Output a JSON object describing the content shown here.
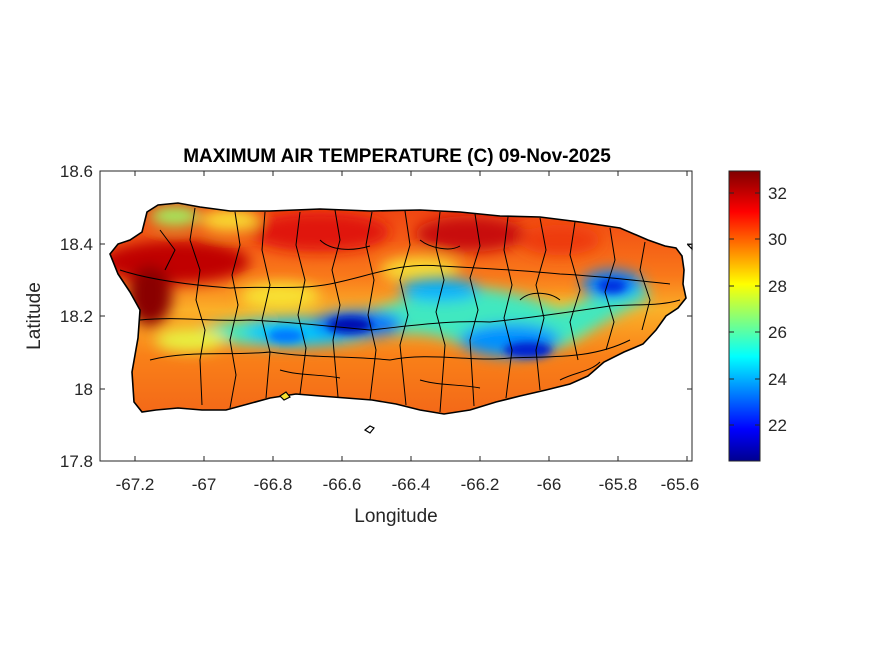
{
  "title": "MAXIMUM AIR TEMPERATURE (C) 09-Nov-2025",
  "xlabel": "Longitude",
  "ylabel": "Latitude",
  "xticks": [
    "-67.2",
    "-67",
    "-66.8",
    "-66.6",
    "-66.4",
    "-66.2",
    "-66",
    "-65.8",
    "-65.6"
  ],
  "yticks": [
    "18.6",
    "18.4",
    "18.2",
    "18",
    "17.8"
  ],
  "colorbar_ticks": [
    "32",
    "30",
    "28",
    "26",
    "24",
    "22"
  ],
  "map_data": {
    "type": "filled-contour-map",
    "region": "Puerto Rico",
    "variable": "Maximum air temperature",
    "units": "C",
    "date": "09-Nov-2025",
    "xlim": [
      -67.3,
      -65.58
    ],
    "ylim": [
      17.8,
      18.6
    ],
    "clim": [
      20.4,
      33.0
    ],
    "colormap": "jet",
    "x_ticks": [
      -67.2,
      -67.0,
      -66.8,
      -66.6,
      -66.4,
      -66.2,
      -66.0,
      -65.8,
      -65.6
    ],
    "y_ticks": [
      17.8,
      18.0,
      18.2,
      18.4,
      18.6
    ],
    "colorbar_ticks": [
      22,
      24,
      26,
      28,
      30,
      32
    ],
    "hot_spots": [
      {
        "lon": -67.15,
        "lat": 18.25,
        "value": 33
      },
      {
        "lon": -67.05,
        "lat": 18.36,
        "value": 32.5
      },
      {
        "lon": -66.25,
        "lat": 18.44,
        "value": 32
      },
      {
        "lon": -66.75,
        "lat": 18.44,
        "value": 31.5
      }
    ],
    "cool_spots": [
      {
        "lon": -66.57,
        "lat": 18.17,
        "value": 21.5
      },
      {
        "lon": -66.05,
        "lat": 18.11,
        "value": 21.5
      },
      {
        "lon": -65.82,
        "lat": 18.28,
        "value": 23
      },
      {
        "lon": -66.35,
        "lat": 18.26,
        "value": 24.5
      },
      {
        "lon": -66.78,
        "lat": 18.14,
        "value": 24
      }
    ]
  },
  "colors": {
    "axes_border": "#262626",
    "outline": "#000000"
  }
}
